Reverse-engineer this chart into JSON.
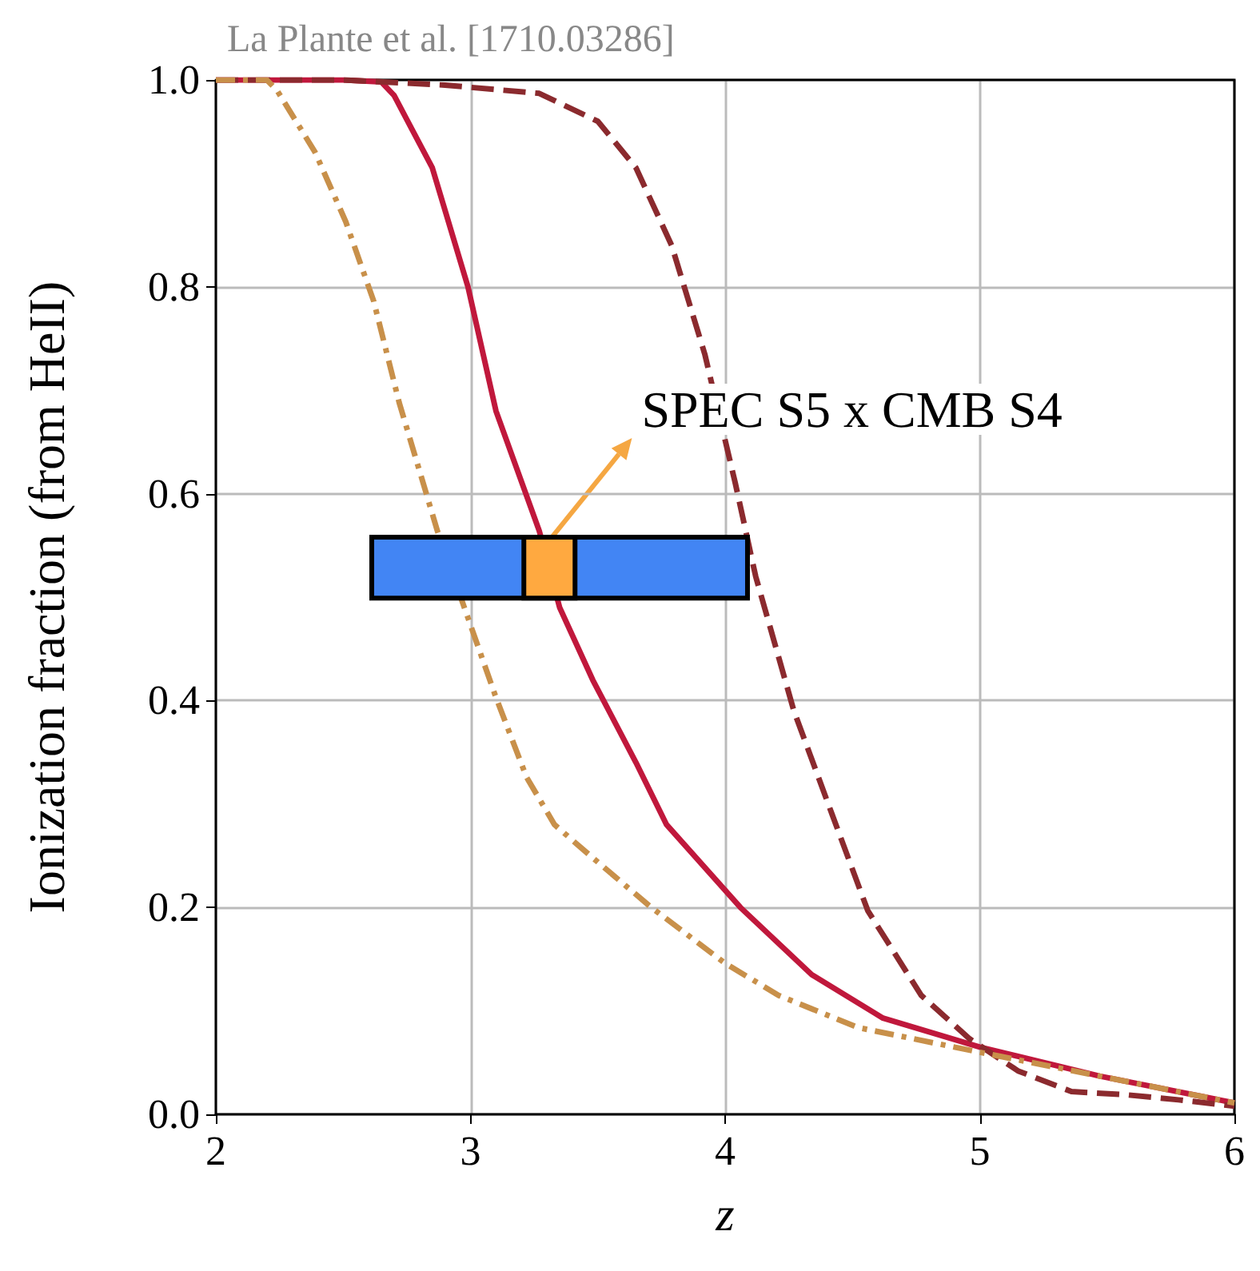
{
  "chart_data": {
    "type": "line",
    "title": "La Plante et al. [1710.03286]",
    "xlabel": "z",
    "ylabel": "Ionization fraction (from HeII)",
    "xlim": [
      2,
      6
    ],
    "xticks": [
      2,
      3,
      4,
      5,
      6
    ],
    "ylim": [
      0,
      1
    ],
    "yticks": [
      {
        "value": 0,
        "label": "0.0"
      },
      {
        "value": 0.2,
        "label": "0.2"
      },
      {
        "value": 0.4,
        "label": "0.4"
      },
      {
        "value": 0.6,
        "label": "0.6"
      },
      {
        "value": 0.8,
        "label": "0.8"
      },
      {
        "value": 1,
        "label": "1.0"
      }
    ],
    "grid": true,
    "marker": "none",
    "annotations": [
      {
        "text": "SPEC S5 x CMB S4",
        "x": 3.32,
        "y": 0.558
      }
    ],
    "series": [
      {
        "color": "#c0183c",
        "line_style": "solid",
        "x": [
          2,
          2.5,
          2.65,
          2.7,
          2.85,
          2.99,
          3.1,
          3.27,
          3.35,
          3.48,
          3.65,
          3.77,
          4.06,
          4.34,
          4.62,
          5.0,
          5.47,
          6
        ],
        "values": [
          1,
          1,
          0.998,
          0.985,
          0.915,
          0.8,
          0.68,
          0.564,
          0.49,
          0.42,
          0.34,
          0.28,
          0.2,
          0.135,
          0.093,
          0.065,
          0.037,
          0.011
        ]
      },
      {
        "color": "#8b2a2e",
        "line_style": "dashed",
        "x": [
          2,
          2.5,
          2.9,
          3.27,
          3.5,
          3.65,
          3.79,
          3.92,
          4.04,
          4.12,
          4.27,
          4.42,
          4.56,
          4.77,
          4.96,
          5.15,
          5.36,
          5.57,
          5.78,
          6
        ],
        "values": [
          1,
          1,
          0.995,
          0.987,
          0.96,
          0.915,
          0.84,
          0.735,
          0.61,
          0.52,
          0.39,
          0.29,
          0.197,
          0.115,
          0.073,
          0.042,
          0.022,
          0.019,
          0.014,
          0.008
        ]
      },
      {
        "color": "#c8904a",
        "line_style": "dashdot",
        "x": [
          2,
          2.2,
          2.24,
          2.39,
          2.51,
          2.62,
          2.72,
          2.87,
          2.99,
          3.1,
          3.22,
          3.33,
          3.48,
          3.71,
          4.0,
          4.21,
          4.52,
          5.0,
          5.47,
          6
        ],
        "values": [
          1,
          1,
          0.99,
          0.93,
          0.863,
          0.786,
          0.688,
          0.564,
          0.48,
          0.403,
          0.326,
          0.28,
          0.248,
          0.2,
          0.146,
          0.115,
          0.084,
          0.06,
          0.037,
          0.011
        ]
      },
      {
        "type": "bar",
        "color": "#4285f4",
        "x": [
          3.35
        ],
        "base": [
          0.499
        ],
        "values": [
          0.059
        ]
      },
      {
        "type": "bar",
        "color": "#ffa940",
        "x": [
          3.31
        ],
        "base": [
          0.499
        ],
        "values": [
          0.059
        ]
      }
    ]
  }
}
